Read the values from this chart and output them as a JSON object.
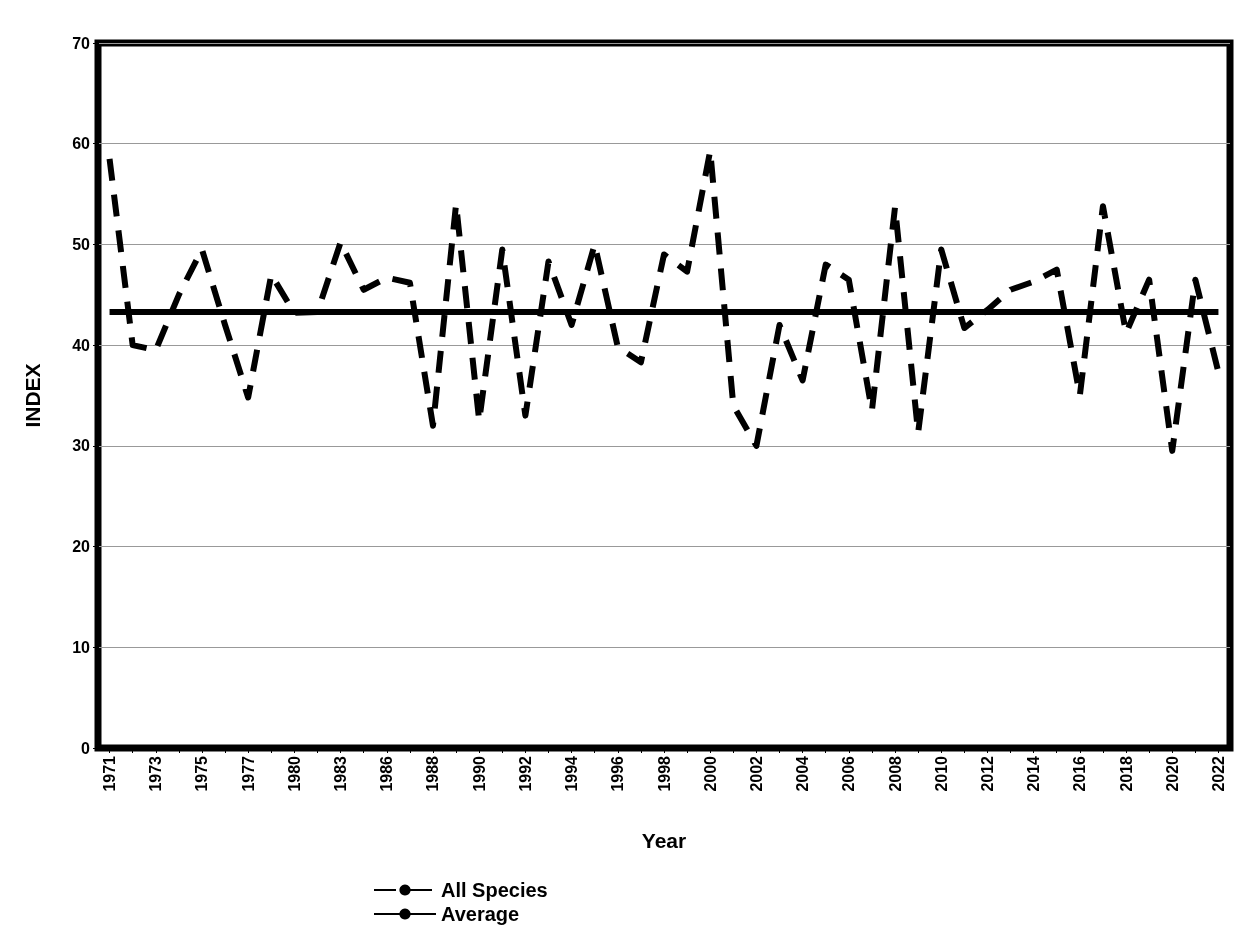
{
  "chart_data": {
    "type": "line",
    "xlabel": "Year",
    "ylabel": "INDEX",
    "categories": [
      "1971",
      null,
      "1973",
      null,
      "1975",
      null,
      "1977",
      null,
      "1980",
      null,
      "1983",
      null,
      "1986",
      null,
      "1988",
      null,
      "1990",
      null,
      "1992",
      null,
      "1994",
      null,
      "1996",
      null,
      "1998",
      null,
      "2000",
      null,
      "2002",
      null,
      "2004",
      null,
      "2006",
      null,
      "2008",
      null,
      "2010",
      null,
      "2012",
      null,
      "2014",
      null,
      "2016",
      null,
      "2018",
      null,
      "2020",
      null,
      "2022"
    ],
    "series": [
      {
        "name": "All Species",
        "color": "#000000",
        "line_style": "dashed",
        "values": [
          58.5,
          40,
          39.5,
          45,
          49.5,
          42,
          34.8,
          47,
          43.2,
          43.3,
          50.2,
          45.5,
          46.7,
          46.2,
          32,
          54,
          32.5,
          49.5,
          33,
          48.3,
          42,
          50,
          39.8,
          38.3,
          49,
          47.3,
          59.3,
          34,
          30,
          42,
          36.5,
          48,
          46.5,
          33.5,
          53.7,
          31.3,
          49.5,
          41.7,
          43.5,
          45.5,
          46.3,
          47.5,
          35,
          53.8,
          41.2,
          46.5,
          29.5,
          46.5,
          37.3
        ]
      },
      {
        "name": "Average",
        "color": "#000000",
        "line_style": "solid",
        "values": [
          43.3,
          43.3,
          43.3,
          43.3,
          43.3,
          43.3,
          43.3,
          43.3,
          43.3,
          43.3,
          43.3,
          43.3,
          43.3,
          43.3,
          43.3,
          43.3,
          43.3,
          43.3,
          43.3,
          43.3,
          43.3,
          43.3,
          43.3,
          43.3,
          43.3,
          43.3,
          43.3,
          43.3,
          43.3,
          43.3,
          43.3,
          43.3,
          43.3,
          43.3,
          43.3,
          43.3,
          43.3,
          43.3,
          43.3,
          43.3,
          43.3,
          43.3,
          43.3,
          43.3,
          43.3,
          43.3,
          43.3,
          43.3,
          43.3
        ]
      }
    ],
    "ylim": [
      0,
      70
    ],
    "yticks": [
      0,
      10,
      20,
      30,
      40,
      50,
      60,
      70
    ],
    "grid": "y",
    "legend": "bottom",
    "marker": "none"
  }
}
